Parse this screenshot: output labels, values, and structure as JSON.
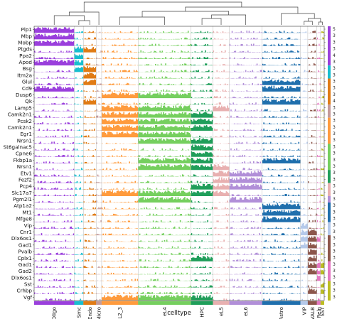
{
  "chart_data": {
    "type": "track_plot",
    "xlabel": "celltype",
    "genes": [
      "Plp1",
      "Mbp",
      "Mobp",
      "Ptgds",
      "Ppa2",
      "Apod",
      "Bsg",
      "Itm2a",
      "Glul",
      "Cd9",
      "Dusp6",
      "Qk",
      "Lamp5",
      "Camk2n1",
      "Pcsk2",
      "Camk2n1",
      "Egr1",
      "Nrsn1",
      "St6galnac5",
      "Cpne6",
      "Fkbp1a",
      "Nrsn1",
      "Etv1",
      "Fezf2",
      "Pcp4",
      "Slc17a7",
      "Pgm2l1",
      "Atp1a2",
      "Mt1",
      "Mfge8",
      "Vip",
      "Cnr1",
      "Dlx6os1",
      "Gad1",
      "Pvalb",
      "Cplx1",
      "Gad1",
      "Gad2",
      "Dlx6os1",
      "Sst",
      "Crhbp",
      "Vgf"
    ],
    "celltypes": [
      {
        "name": "Oligo",
        "color": "#9a3fdc",
        "weight": 11
      },
      {
        "name": "Smc",
        "color": "#17becf",
        "weight": 2.5
      },
      {
        "name": "Endo",
        "color": "#e07b15",
        "weight": 3.5
      },
      {
        "name": "Micro",
        "color": "#c49a9a",
        "weight": 1.5
      },
      {
        "name": "eL2_3",
        "color": "#ff9b3d",
        "weight": 10
      },
      {
        "name": "eL4",
        "color": "#75cf5e",
        "weight": 14.5
      },
      {
        "name": "HPC",
        "color": "#1f9e5a",
        "weight": 6
      },
      {
        "name": "eL5",
        "color": "#e8b0b0",
        "weight": 4.5
      },
      {
        "name": "eL6",
        "color": "#b18fd8",
        "weight": 9
      },
      {
        "name": "Astro",
        "color": "#1f6fad",
        "weight": 10.5
      },
      {
        "name": "VIP",
        "color": "#b5c9ea",
        "weight": 2
      },
      {
        "name": "PVALB",
        "color": "#8c564b",
        "weight": 2.5
      },
      {
        "name": "Reln",
        "color": "#e477c2",
        "weight": 1
      },
      {
        "name": "SST",
        "color": "#bcbd22",
        "weight": 1
      }
    ],
    "track_scale_ticks": [
      "5",
      "3",
      "3",
      "3",
      "4",
      "3",
      "3",
      "3",
      "3",
      "3",
      "3",
      "4",
      "3",
      "3",
      "3",
      "3",
      "3",
      "3",
      "3",
      "3",
      "3",
      "3",
      "3",
      "3",
      "3",
      "3",
      "3",
      "3",
      "3",
      "3",
      "3",
      "3",
      "3",
      "3",
      "3",
      "3",
      "3",
      "3",
      "3",
      "3",
      "3",
      "3"
    ]
  }
}
